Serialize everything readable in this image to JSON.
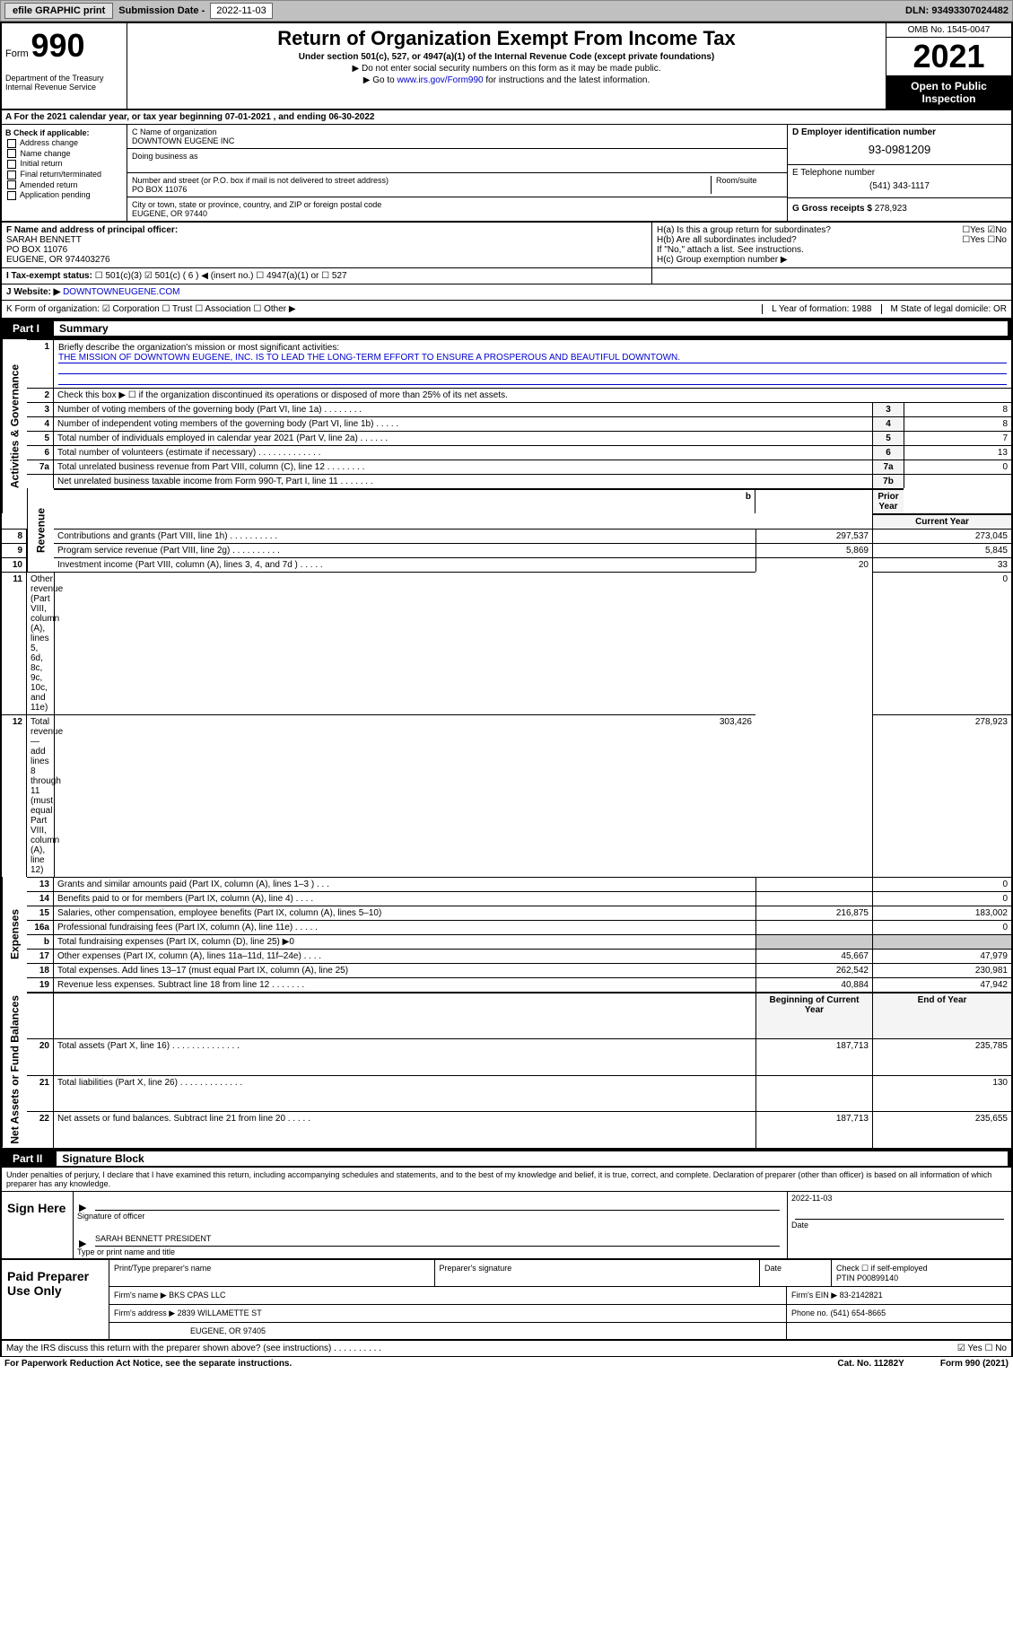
{
  "topbar": {
    "efile": "efile GRAPHIC print",
    "sub_label": "Submission Date - ",
    "sub_date": "2022-11-03",
    "dln_label": "DLN: ",
    "dln": "93493307024482"
  },
  "header": {
    "form_prefix": "Form",
    "form_no": "990",
    "title": "Return of Organization Exempt From Income Tax",
    "sub1": "Under section 501(c), 527, or 4947(a)(1) of the Internal Revenue Code (except private foundations)",
    "sub2": "▶ Do not enter social security numbers on this form as it may be made public.",
    "sub3_pre": "▶ Go to ",
    "sub3_link": "www.irs.gov/Form990",
    "sub3_post": " for instructions and the latest information.",
    "dept": "Department of the Treasury\nInternal Revenue Service",
    "omb": "OMB No. 1545-0047",
    "year": "2021",
    "opi": "Open to Public Inspection"
  },
  "lineA": "A  For the 2021 calendar year, or tax year beginning 07-01-2021    , and ending 06-30-2022",
  "colB": {
    "title": "B Check if applicable:",
    "items": [
      "Address change",
      "Name change",
      "Initial return",
      "Final return/terminated",
      "Amended return",
      "Application pending"
    ]
  },
  "colC": {
    "name_lbl": "C Name of organization",
    "name": "DOWNTOWN EUGENE INC",
    "dba_lbl": "Doing business as",
    "addr_lbl": "Number and street (or P.O. box if mail is not delivered to street address)",
    "room_lbl": "Room/suite",
    "addr": "PO BOX 11076",
    "city_lbl": "City or town, state or province, country, and ZIP or foreign postal code",
    "city": "EUGENE, OR  97440"
  },
  "colD": {
    "d_lbl": "D Employer identification number",
    "ein": "93-0981209",
    "e_lbl": "E Telephone number",
    "phone": "(541) 343-1117",
    "g_lbl": "G Gross receipts $ ",
    "gross": "278,923"
  },
  "rowF": {
    "f_lbl": "F Name and address of principal officer:",
    "f_val": "SARAH BENNETT\nPO BOX 11076\nEUGENE, OR  974403276",
    "ha": "H(a)  Is this a group return for subordinates?",
    "ha_ans": "☐Yes ☑No",
    "hb": "H(b)  Are all subordinates included?",
    "hb_ans": "☐Yes ☐No",
    "hb_note": "If \"No,\" attach a list. See instructions.",
    "hc": "H(c)  Group exemption number ▶"
  },
  "rowI": {
    "label": "I    Tax-exempt status:",
    "opts": "☐ 501(c)(3)   ☑ 501(c) ( 6 ) ◀ (insert no.)   ☐ 4947(a)(1) or   ☐ 527"
  },
  "rowJ": {
    "label": "J   Website: ▶ ",
    "site": "DOWNTOWNEUGENE.COM"
  },
  "rowK": {
    "k": "K Form of organization:  ☑ Corporation  ☐ Trust  ☐ Association  ☐ Other ▶",
    "l": "L Year of formation: 1988",
    "m": "M State of legal domicile: OR"
  },
  "part1": {
    "num": "Part I",
    "title": "Summary"
  },
  "summary": {
    "q1": "Briefly describe the organization's mission or most significant activities:",
    "mission": "THE MISSION OF DOWNTOWN EUGENE, INC. IS TO LEAD THE LONG-TERM EFFORT TO ENSURE A PROSPEROUS AND BEAUTIFUL DOWNTOWN.",
    "q2": "Check this box ▶ ☐  if the organization discontinued its operations or disposed of more than 25% of its net assets.",
    "rows_top": [
      {
        "n": "3",
        "d": "Number of voting members of the governing body (Part VI, line 1a)   .    .    .    .    .    .    .    .",
        "ln": "3",
        "v": "8"
      },
      {
        "n": "4",
        "d": "Number of independent voting members of the governing body (Part VI, line 1b)   .    .    .    .    .",
        "ln": "4",
        "v": "8"
      },
      {
        "n": "5",
        "d": "Total number of individuals employed in calendar year 2021 (Part V, line 2a)   .    .    .    .    .    .",
        "ln": "5",
        "v": "7"
      },
      {
        "n": "6",
        "d": "Total number of volunteers (estimate if necessary)   .    .    .    .    .    .    .    .    .    .    .    .    .",
        "ln": "6",
        "v": "13"
      },
      {
        "n": "7a",
        "d": "Total unrelated business revenue from Part VIII, column (C), line 12   .    .    .    .    .    .    .    .",
        "ln": "7a",
        "v": "0"
      },
      {
        "n": "",
        "d": "Net unrelated business taxable income from Form 990-T, Part I, line 11   .    .    .    .    .    .    .",
        "ln": "7b",
        "v": ""
      }
    ],
    "col_py": "Prior Year",
    "col_cy": "Current Year",
    "rev_rows": [
      {
        "n": "8",
        "d": "Contributions and grants (Part VIII, line 1h)   .    .    .    .    .    .    .    .    .    .",
        "py": "297,537",
        "cy": "273,045"
      },
      {
        "n": "9",
        "d": "Program service revenue (Part VIII, line 2g)   .    .    .    .    .    .    .    .    .    .",
        "py": "5,869",
        "cy": "5,845"
      },
      {
        "n": "10",
        "d": "Investment income (Part VIII, column (A), lines 3, 4, and 7d )   .    .    .    .    .",
        "py": "20",
        "cy": "33"
      },
      {
        "n": "11",
        "d": "Other revenue (Part VIII, column (A), lines 5, 6d, 8c, 9c, 10c, and 11e)",
        "py": "",
        "cy": "0"
      },
      {
        "n": "12",
        "d": "Total revenue—add lines 8 through 11 (must equal Part VIII, column (A), line 12)",
        "py": "303,426",
        "cy": "278,923"
      }
    ],
    "exp_rows": [
      {
        "n": "13",
        "d": "Grants and similar amounts paid (Part IX, column (A), lines 1–3 )   .    .    .",
        "py": "",
        "cy": "0"
      },
      {
        "n": "14",
        "d": "Benefits paid to or for members (Part IX, column (A), line 4)   .    .    .    .",
        "py": "",
        "cy": "0"
      },
      {
        "n": "15",
        "d": "Salaries, other compensation, employee benefits (Part IX, column (A), lines 5–10)",
        "py": "216,875",
        "cy": "183,002"
      },
      {
        "n": "16a",
        "d": "Professional fundraising fees (Part IX, column (A), line 11e)   .    .    .    .    .",
        "py": "",
        "cy": "0"
      },
      {
        "n": "b",
        "d": "Total fundraising expenses (Part IX, column (D), line 25) ▶0",
        "py": "GREY",
        "cy": "GREY"
      },
      {
        "n": "17",
        "d": "Other expenses (Part IX, column (A), lines 11a–11d, 11f–24e)   .    .    .    .",
        "py": "45,667",
        "cy": "47,979"
      },
      {
        "n": "18",
        "d": "Total expenses. Add lines 13–17 (must equal Part IX, column (A), line 25)",
        "py": "262,542",
        "cy": "230,981"
      },
      {
        "n": "19",
        "d": "Revenue less expenses. Subtract line 18 from line 12   .    .    .    .    .    .    .",
        "py": "40,884",
        "cy": "47,942"
      }
    ],
    "col_boy": "Beginning of Current Year",
    "col_eoy": "End of Year",
    "net_rows": [
      {
        "n": "20",
        "d": "Total assets (Part X, line 16)   .    .    .    .    .    .    .    .    .    .    .    .    .    .",
        "py": "187,713",
        "cy": "235,785"
      },
      {
        "n": "21",
        "d": "Total liabilities (Part X, line 26)   .    .    .    .    .    .    .    .    .    .    .    .    .",
        "py": "",
        "cy": "130"
      },
      {
        "n": "22",
        "d": "Net assets or fund balances. Subtract line 21 from line 20   .    .    .    .    .",
        "py": "187,713",
        "cy": "235,655"
      }
    ],
    "side_act": "Activities & Governance",
    "side_rev": "Revenue",
    "side_exp": "Expenses",
    "side_net": "Net Assets or Fund Balances"
  },
  "part2": {
    "num": "Part II",
    "title": "Signature Block"
  },
  "sig": {
    "decl": "Under penalties of perjury, I declare that I have examined this return, including accompanying schedules and statements, and to the best of my knowledge and belief, it is true, correct, and complete. Declaration of preparer (other than officer) is based on all information of which preparer has any knowledge.",
    "sign_here": "Sign Here",
    "sig_of": "Signature of officer",
    "date_lbl": "Date",
    "date": "2022-11-03",
    "name_title": "SARAH BENNETT PRESIDENT",
    "type_name": "Type or print name and title"
  },
  "prep": {
    "side": "Paid Preparer Use Only",
    "h1": "Print/Type preparer's name",
    "h2": "Preparer's signature",
    "h3": "Date",
    "h4a": "Check ☐ if self-employed",
    "h4b": "PTIN",
    "ptin": "P00899140",
    "firm_lbl": "Firm's name     ▶ ",
    "firm": "BKS CPAS LLC",
    "ein_lbl": "Firm's EIN ▶ ",
    "ein": "83-2142821",
    "addr_lbl": "Firm's address ▶ ",
    "addr1": "2839 WILLAMETTE ST",
    "addr2": "EUGENE, OR  97405",
    "phone_lbl": "Phone no. ",
    "phone": "(541) 654-8665"
  },
  "footer": {
    "q": "May the IRS discuss this return with the preparer shown above? (see instructions)   .    .    .    .    .    .    .    .    .    .",
    "ans": "☑ Yes  ☐ No",
    "pra": "For Paperwork Reduction Act Notice, see the separate instructions.",
    "cat": "Cat. No. 11282Y",
    "form": "Form 990 (2021)"
  }
}
